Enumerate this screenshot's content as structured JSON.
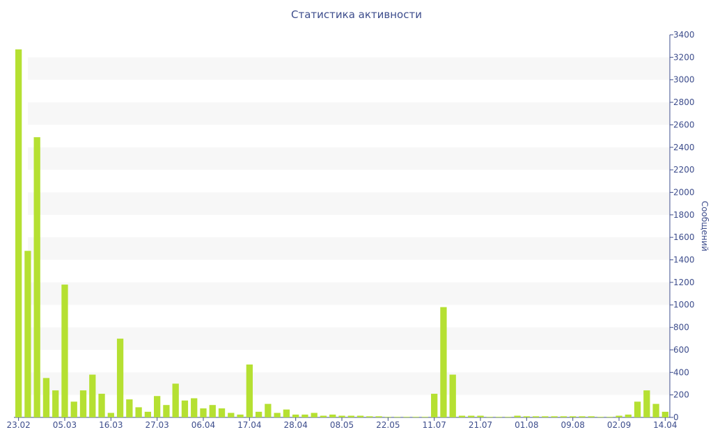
{
  "chart_data": {
    "type": "bar",
    "title": "Статистика активности",
    "y_axis_label": "Сообщений",
    "categories": [
      "23.02",
      null,
      null,
      null,
      null,
      "05.03",
      null,
      null,
      null,
      null,
      "16.03",
      null,
      null,
      null,
      null,
      "27.03",
      null,
      null,
      null,
      null,
      "06.04",
      null,
      null,
      null,
      null,
      "17.04",
      null,
      null,
      null,
      null,
      "28.04",
      null,
      null,
      null,
      null,
      "08.05",
      null,
      null,
      null,
      null,
      "22.05",
      null,
      null,
      null,
      null,
      "11.07",
      null,
      null,
      null,
      null,
      "21.07",
      null,
      null,
      null,
      null,
      "01.08",
      null,
      null,
      null,
      null,
      "09.08",
      null,
      null,
      null,
      null,
      "02.09",
      null,
      null,
      null,
      null,
      "14.04"
    ],
    "values": [
      3270,
      1480,
      2490,
      350,
      240,
      1180,
      140,
      240,
      380,
      210,
      40,
      700,
      160,
      90,
      50,
      190,
      110,
      300,
      150,
      170,
      80,
      110,
      80,
      40,
      25,
      470,
      50,
      120,
      40,
      70,
      25,
      25,
      40,
      15,
      25,
      15,
      15,
      15,
      10,
      10,
      5,
      5,
      5,
      5,
      5,
      210,
      980,
      380,
      15,
      15,
      15,
      5,
      5,
      5,
      15,
      10,
      10,
      10,
      10,
      10,
      10,
      10,
      10,
      5,
      5,
      15,
      25,
      140,
      240,
      120,
      50
    ],
    "color": "#b5e032",
    "ylim": [
      0,
      3400
    ],
    "yticks": [
      0,
      200,
      400,
      600,
      800,
      1000,
      1200,
      1400,
      1600,
      1800,
      2000,
      2200,
      2400,
      2600,
      2800,
      3000,
      3200,
      3400
    ],
    "y_axis_side": "right",
    "grid_bands": true
  }
}
